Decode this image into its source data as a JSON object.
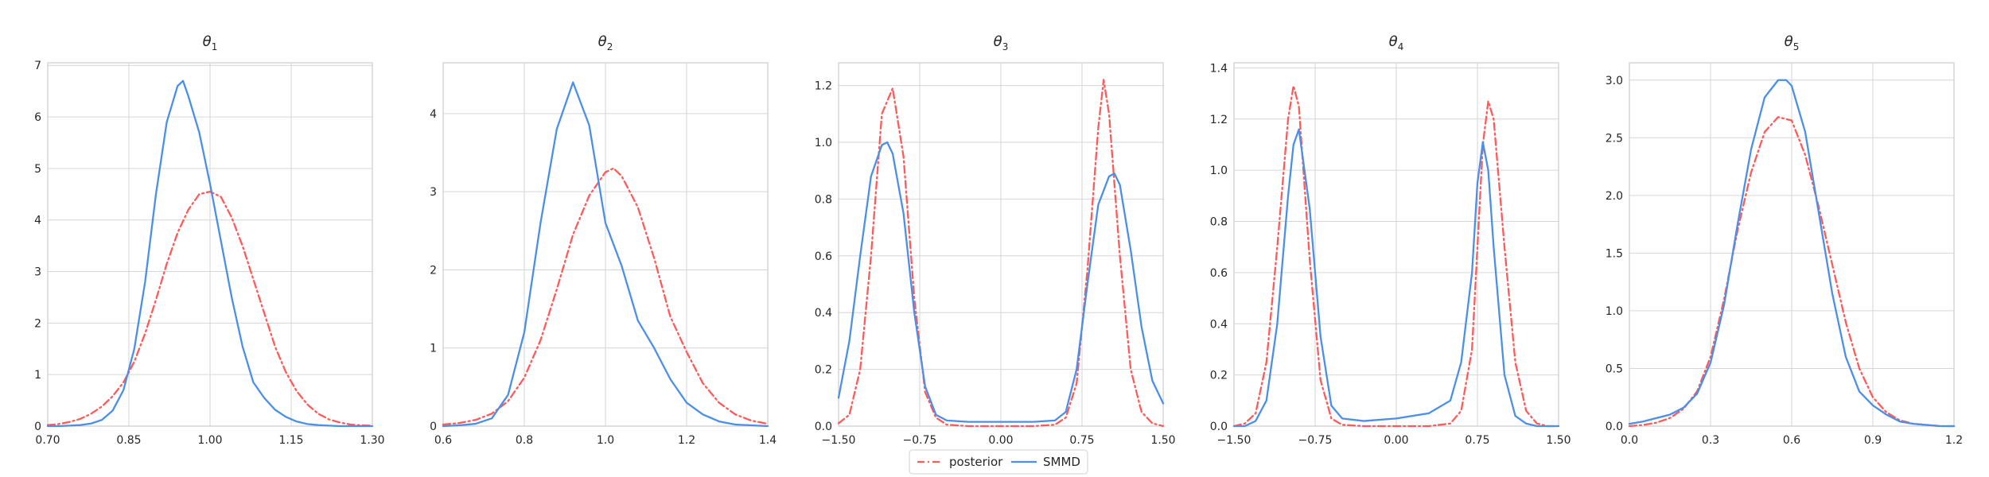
{
  "chart_data": [
    {
      "type": "line",
      "title": "θ",
      "subscript": "1",
      "xlim": [
        0.7,
        1.3
      ],
      "ylim": [
        0,
        7.05
      ],
      "xticks": [
        0.7,
        0.85,
        1.0,
        1.15,
        1.3
      ],
      "xtick_labels": [
        "0.70",
        "0.85",
        "1.00",
        "1.15",
        "1.30"
      ],
      "yticks": [
        0,
        1,
        2,
        3,
        4,
        5,
        6,
        7
      ],
      "ytick_labels": [
        "0",
        "1",
        "2",
        "3",
        "4",
        "5",
        "6",
        "7"
      ],
      "grid": true,
      "series": [
        {
          "name": "posterior",
          "x": [
            0.7,
            0.72,
            0.74,
            0.76,
            0.78,
            0.8,
            0.82,
            0.84,
            0.86,
            0.88,
            0.9,
            0.92,
            0.94,
            0.96,
            0.98,
            1.0,
            1.02,
            1.04,
            1.06,
            1.08,
            1.1,
            1.12,
            1.14,
            1.16,
            1.18,
            1.2,
            1.22,
            1.24,
            1.26,
            1.28,
            1.3
          ],
          "y": [
            0.02,
            0.04,
            0.08,
            0.14,
            0.24,
            0.38,
            0.58,
            0.85,
            1.25,
            1.8,
            2.45,
            3.15,
            3.75,
            4.2,
            4.5,
            4.55,
            4.45,
            4.05,
            3.5,
            2.85,
            2.2,
            1.55,
            1.05,
            0.68,
            0.42,
            0.24,
            0.13,
            0.07,
            0.03,
            0.015,
            0.01
          ]
        },
        {
          "name": "SMMD",
          "x": [
            0.7,
            0.72,
            0.74,
            0.76,
            0.78,
            0.8,
            0.82,
            0.84,
            0.86,
            0.88,
            0.9,
            0.92,
            0.94,
            0.95,
            0.96,
            0.98,
            1.0,
            1.02,
            1.04,
            1.06,
            1.08,
            1.1,
            1.12,
            1.14,
            1.16,
            1.18,
            1.2,
            1.22,
            1.24,
            1.26,
            1.28,
            1.3
          ],
          "y": [
            0.0,
            0.0,
            0.01,
            0.02,
            0.05,
            0.12,
            0.3,
            0.7,
            1.5,
            2.8,
            4.5,
            5.9,
            6.6,
            6.7,
            6.4,
            5.7,
            4.7,
            3.6,
            2.5,
            1.55,
            0.85,
            0.55,
            0.32,
            0.18,
            0.09,
            0.04,
            0.02,
            0.01,
            0.0,
            0.0,
            0.0,
            0.0
          ]
        }
      ]
    },
    {
      "type": "line",
      "title": "θ",
      "subscript": "2",
      "xlim": [
        0.6,
        1.4
      ],
      "ylim": [
        0,
        4.65
      ],
      "xticks": [
        0.6,
        0.8,
        1.0,
        1.2,
        1.4
      ],
      "xtick_labels": [
        "0.6",
        "0.8",
        "1.0",
        "1.2",
        "1.4"
      ],
      "yticks": [
        0,
        1,
        2,
        3,
        4
      ],
      "ytick_labels": [
        "0",
        "1",
        "2",
        "3",
        "4"
      ],
      "grid": true,
      "series": [
        {
          "name": "posterior",
          "x": [
            0.6,
            0.64,
            0.68,
            0.72,
            0.76,
            0.8,
            0.84,
            0.88,
            0.92,
            0.96,
            1.0,
            1.02,
            1.04,
            1.08,
            1.12,
            1.16,
            1.2,
            1.24,
            1.28,
            1.32,
            1.36,
            1.4
          ],
          "y": [
            0.02,
            0.04,
            0.08,
            0.16,
            0.32,
            0.62,
            1.1,
            1.75,
            2.45,
            2.95,
            3.25,
            3.3,
            3.2,
            2.8,
            2.15,
            1.4,
            0.95,
            0.55,
            0.3,
            0.15,
            0.07,
            0.03
          ]
        },
        {
          "name": "SMMD",
          "x": [
            0.6,
            0.64,
            0.68,
            0.72,
            0.76,
            0.8,
            0.84,
            0.88,
            0.92,
            0.96,
            1.0,
            1.04,
            1.08,
            1.12,
            1.16,
            1.2,
            1.24,
            1.28,
            1.32,
            1.36,
            1.4
          ],
          "y": [
            0.0,
            0.01,
            0.03,
            0.1,
            0.4,
            1.2,
            2.6,
            3.8,
            4.4,
            3.85,
            2.6,
            2.05,
            1.35,
            1.0,
            0.6,
            0.3,
            0.15,
            0.06,
            0.02,
            0.01,
            0.0
          ]
        }
      ]
    },
    {
      "type": "line",
      "title": "θ",
      "subscript": "3",
      "xlim": [
        -1.5,
        1.5
      ],
      "ylim": [
        0,
        1.28
      ],
      "xticks": [
        -1.5,
        -0.75,
        0.0,
        0.75,
        1.5
      ],
      "xtick_labels": [
        "−1.50",
        "−0.75",
        "0.00",
        "0.75",
        "1.50"
      ],
      "yticks": [
        0,
        0.2,
        0.4,
        0.6,
        0.8,
        1.0,
        1.2
      ],
      "ytick_labels": [
        "0.0",
        "0.2",
        "0.4",
        "0.6",
        "0.8",
        "1.0",
        "1.2"
      ],
      "grid": true,
      "series": [
        {
          "name": "posterior",
          "x": [
            -1.5,
            -1.4,
            -1.3,
            -1.2,
            -1.1,
            -1.0,
            -0.9,
            -0.8,
            -0.7,
            -0.6,
            -0.5,
            -0.3,
            0.0,
            0.3,
            0.5,
            0.6,
            0.7,
            0.8,
            0.9,
            0.95,
            1.0,
            1.1,
            1.2,
            1.3,
            1.4,
            1.5
          ],
          "y": [
            0.01,
            0.04,
            0.2,
            0.6,
            1.1,
            1.19,
            0.95,
            0.45,
            0.12,
            0.03,
            0.005,
            0.0,
            0.0,
            0.0,
            0.005,
            0.03,
            0.15,
            0.55,
            1.05,
            1.22,
            1.1,
            0.6,
            0.2,
            0.05,
            0.01,
            0.0
          ]
        },
        {
          "name": "SMMD",
          "x": [
            -1.5,
            -1.4,
            -1.3,
            -1.2,
            -1.1,
            -1.05,
            -1.0,
            -0.9,
            -0.8,
            -0.7,
            -0.6,
            -0.5,
            -0.3,
            0.0,
            0.3,
            0.5,
            0.6,
            0.7,
            0.8,
            0.9,
            1.0,
            1.05,
            1.1,
            1.2,
            1.3,
            1.4,
            1.5
          ],
          "y": [
            0.1,
            0.3,
            0.6,
            0.88,
            0.99,
            1.0,
            0.96,
            0.75,
            0.4,
            0.14,
            0.04,
            0.02,
            0.015,
            0.015,
            0.015,
            0.02,
            0.05,
            0.2,
            0.5,
            0.78,
            0.88,
            0.89,
            0.85,
            0.62,
            0.35,
            0.16,
            0.08
          ]
        }
      ]
    },
    {
      "type": "line",
      "title": "θ",
      "subscript": "4",
      "xlim": [
        -1.5,
        1.5
      ],
      "ylim": [
        0,
        1.42
      ],
      "xticks": [
        -1.5,
        -0.75,
        0.0,
        0.75,
        1.5
      ],
      "xtick_labels": [
        "−1.50",
        "−0.75",
        "0.00",
        "0.75",
        "1.50"
      ],
      "yticks": [
        0,
        0.2,
        0.4,
        0.6,
        0.8,
        1.0,
        1.2,
        1.4
      ],
      "ytick_labels": [
        "0.0",
        "0.2",
        "0.4",
        "0.6",
        "0.8",
        "1.0",
        "1.2",
        "1.4"
      ],
      "grid": true,
      "series": [
        {
          "name": "posterior",
          "x": [
            -1.5,
            -1.4,
            -1.3,
            -1.2,
            -1.1,
            -1.0,
            -0.95,
            -0.9,
            -0.8,
            -0.7,
            -0.6,
            -0.5,
            -0.3,
            0.0,
            0.3,
            0.5,
            0.6,
            0.7,
            0.75,
            0.8,
            0.85,
            0.9,
            1.0,
            1.1,
            1.2,
            1.3,
            1.4,
            1.5
          ],
          "y": [
            0.0,
            0.01,
            0.05,
            0.25,
            0.7,
            1.2,
            1.33,
            1.25,
            0.65,
            0.18,
            0.03,
            0.005,
            0.0,
            0.0,
            0.0,
            0.01,
            0.06,
            0.3,
            0.7,
            1.1,
            1.27,
            1.2,
            0.7,
            0.25,
            0.06,
            0.01,
            0.0,
            0.0
          ]
        },
        {
          "name": "SMMD",
          "x": [
            -1.5,
            -1.4,
            -1.3,
            -1.2,
            -1.1,
            -1.0,
            -0.95,
            -0.9,
            -0.8,
            -0.7,
            -0.6,
            -0.5,
            -0.3,
            0.0,
            0.3,
            0.5,
            0.6,
            0.7,
            0.75,
            0.8,
            0.85,
            0.9,
            1.0,
            1.1,
            1.2,
            1.3,
            1.4,
            1.5
          ],
          "y": [
            0.0,
            0.0,
            0.02,
            0.1,
            0.4,
            0.9,
            1.1,
            1.16,
            0.85,
            0.35,
            0.08,
            0.03,
            0.02,
            0.03,
            0.05,
            0.1,
            0.25,
            0.6,
            0.95,
            1.11,
            1.0,
            0.7,
            0.2,
            0.04,
            0.01,
            0.0,
            0.0,
            0.0
          ]
        }
      ]
    },
    {
      "type": "line",
      "title": "θ",
      "subscript": "5",
      "xlim": [
        0.0,
        1.2
      ],
      "ylim": [
        0,
        3.15
      ],
      "xticks": [
        0.0,
        0.3,
        0.6,
        0.9,
        1.2
      ],
      "xtick_labels": [
        "0.0",
        "0.3",
        "0.6",
        "0.9",
        "1.2"
      ],
      "yticks": [
        0,
        0.5,
        1.0,
        1.5,
        2.0,
        2.5,
        3.0
      ],
      "ytick_labels": [
        "0.0",
        "0.5",
        "1.0",
        "1.5",
        "2.0",
        "2.5",
        "3.0"
      ],
      "grid": true,
      "series": [
        {
          "name": "posterior",
          "x": [
            0.0,
            0.05,
            0.1,
            0.15,
            0.2,
            0.25,
            0.3,
            0.35,
            0.4,
            0.45,
            0.5,
            0.55,
            0.6,
            0.65,
            0.7,
            0.75,
            0.8,
            0.85,
            0.9,
            0.95,
            1.0,
            1.05,
            1.1,
            1.15,
            1.2
          ],
          "y": [
            0.0,
            0.01,
            0.03,
            0.07,
            0.15,
            0.3,
            0.6,
            1.1,
            1.7,
            2.2,
            2.55,
            2.68,
            2.65,
            2.35,
            1.9,
            1.4,
            0.9,
            0.5,
            0.25,
            0.12,
            0.05,
            0.02,
            0.01,
            0.0,
            0.0
          ]
        },
        {
          "name": "SMMD",
          "x": [
            0.0,
            0.05,
            0.1,
            0.15,
            0.2,
            0.25,
            0.3,
            0.35,
            0.4,
            0.45,
            0.5,
            0.55,
            0.58,
            0.6,
            0.65,
            0.7,
            0.75,
            0.8,
            0.85,
            0.9,
            0.95,
            1.0,
            1.05,
            1.1,
            1.15,
            1.2
          ],
          "y": [
            0.02,
            0.04,
            0.07,
            0.1,
            0.16,
            0.28,
            0.55,
            1.05,
            1.75,
            2.4,
            2.85,
            3.0,
            3.0,
            2.95,
            2.55,
            1.85,
            1.15,
            0.6,
            0.3,
            0.18,
            0.1,
            0.04,
            0.02,
            0.01,
            0.0,
            0.0
          ]
        }
      ]
    }
  ],
  "legend": {
    "placement": "bottom-center",
    "entries": [
      {
        "label": "posterior",
        "color": "#ff5a5a",
        "style": "dashdot"
      },
      {
        "label": "SMMD",
        "color": "#4b8fe8",
        "style": "solid"
      }
    ]
  },
  "colors": {
    "posterior": "#ff5a5a",
    "smmd": "#4b8fe8",
    "grid": "#d6d6d6",
    "axes": "#cccccc"
  }
}
